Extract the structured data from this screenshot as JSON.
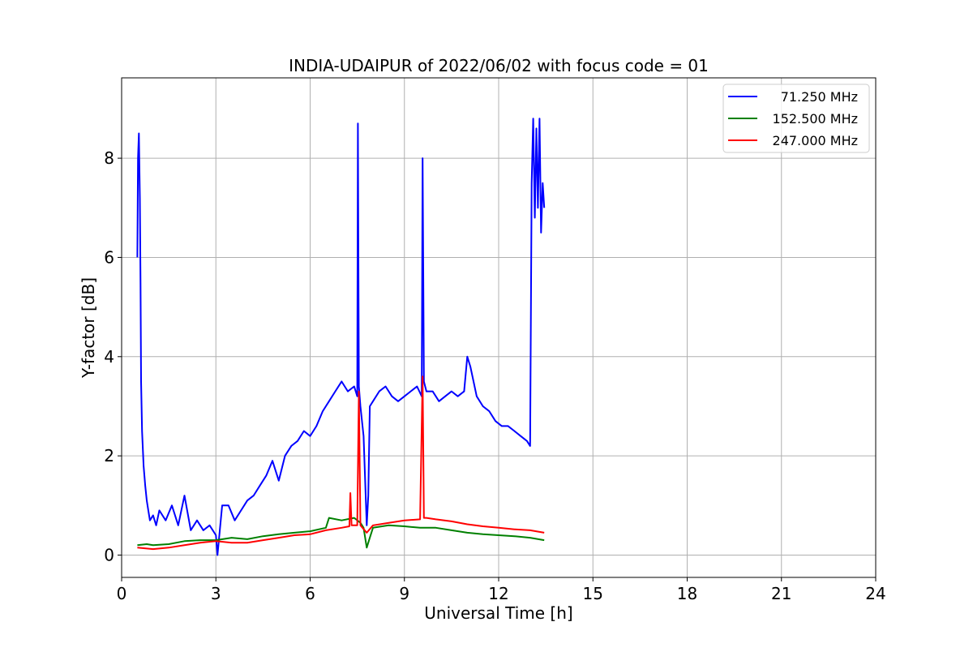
{
  "chart_data": {
    "type": "line",
    "title": "INDIA-UDAIPUR of 2022/06/02 with focus code = 01",
    "xlabel": "Universal Time [h]",
    "ylabel": "Y-factor [dB]",
    "xlim": [
      0,
      24
    ],
    "ylim": [
      -0.45,
      9.62
    ],
    "xticks": [
      0,
      3,
      6,
      9,
      12,
      15,
      18,
      21,
      24
    ],
    "xtick_labels": [
      "0",
      "3",
      "6",
      "9",
      "12",
      "15",
      "18",
      "21",
      "24"
    ],
    "yticks": [
      0,
      2,
      4,
      6,
      8
    ],
    "ytick_labels": [
      "0",
      "2",
      "4",
      "6",
      "8"
    ],
    "grid": true,
    "legend_position": "top-right",
    "series": [
      {
        "name": "71.250 MHz",
        "legend_label": "71.250 MHz",
        "color": "#0000ff",
        "x": [
          0.5,
          0.52,
          0.55,
          0.58,
          0.6,
          0.62,
          0.65,
          0.7,
          0.75,
          0.8,
          0.85,
          0.9,
          1.0,
          1.1,
          1.2,
          1.4,
          1.6,
          1.8,
          2.0,
          2.2,
          2.4,
          2.6,
          2.8,
          3.0,
          3.05,
          3.2,
          3.4,
          3.6,
          3.8,
          4.0,
          4.2,
          4.4,
          4.6,
          4.8,
          5.0,
          5.2,
          5.4,
          5.6,
          5.8,
          6.0,
          6.2,
          6.4,
          6.6,
          6.8,
          7.0,
          7.2,
          7.4,
          7.5,
          7.52,
          7.55,
          7.6,
          7.7,
          7.8,
          7.85,
          7.9,
          8.0,
          8.2,
          8.4,
          8.6,
          8.8,
          9.0,
          9.2,
          9.4,
          9.55,
          9.58,
          9.62,
          9.7,
          9.9,
          10.1,
          10.3,
          10.5,
          10.7,
          10.9,
          11.0,
          11.1,
          11.3,
          11.5,
          11.7,
          11.9,
          12.1,
          12.3,
          12.5,
          12.7,
          12.9,
          13.0,
          13.05,
          13.1,
          13.15,
          13.2,
          13.25,
          13.3,
          13.35,
          13.4,
          13.45
        ],
        "y": [
          6.0,
          8.0,
          8.5,
          7.2,
          5.5,
          3.5,
          2.5,
          1.8,
          1.4,
          1.1,
          0.9,
          0.7,
          0.8,
          0.6,
          0.9,
          0.7,
          1.0,
          0.6,
          1.2,
          0.5,
          0.7,
          0.5,
          0.6,
          0.4,
          0.0,
          1.0,
          1.0,
          0.7,
          0.9,
          1.1,
          1.2,
          1.4,
          1.6,
          1.9,
          1.5,
          2.0,
          2.2,
          2.3,
          2.5,
          2.4,
          2.6,
          2.9,
          3.1,
          3.3,
          3.5,
          3.3,
          3.4,
          3.2,
          8.7,
          3.4,
          3.0,
          2.4,
          0.6,
          1.2,
          3.0,
          3.1,
          3.3,
          3.4,
          3.2,
          3.1,
          3.2,
          3.3,
          3.4,
          3.2,
          8.0,
          3.5,
          3.3,
          3.3,
          3.1,
          3.2,
          3.3,
          3.2,
          3.3,
          4.0,
          3.8,
          3.2,
          3.0,
          2.9,
          2.7,
          2.6,
          2.6,
          2.5,
          2.4,
          2.3,
          2.2,
          7.5,
          8.8,
          6.8,
          8.6,
          7.0,
          8.8,
          6.5,
          7.5,
          7.0
        ]
      },
      {
        "name": "152.500 MHz",
        "legend_label": "152.500 MHz",
        "color": "#008000",
        "x": [
          0.5,
          0.8,
          1.0,
          1.5,
          2.0,
          2.5,
          3.0,
          3.5,
          4.0,
          4.5,
          5.0,
          5.5,
          6.0,
          6.5,
          6.6,
          7.0,
          7.4,
          7.6,
          7.7,
          7.8,
          7.9,
          8.0,
          8.5,
          9.0,
          9.5,
          10.0,
          10.5,
          11.0,
          11.5,
          12.0,
          12.5,
          13.0,
          13.45
        ],
        "y": [
          0.2,
          0.22,
          0.2,
          0.22,
          0.28,
          0.3,
          0.3,
          0.35,
          0.32,
          0.38,
          0.42,
          0.45,
          0.48,
          0.55,
          0.75,
          0.7,
          0.75,
          0.65,
          0.55,
          0.15,
          0.35,
          0.55,
          0.6,
          0.58,
          0.55,
          0.55,
          0.5,
          0.45,
          0.42,
          0.4,
          0.38,
          0.35,
          0.3
        ]
      },
      {
        "name": "247.000 MHz",
        "legend_label": "247.000 MHz",
        "color": "#ff0000",
        "x": [
          0.5,
          1.0,
          1.5,
          2.0,
          2.5,
          3.0,
          3.5,
          4.0,
          4.5,
          5.0,
          5.5,
          6.0,
          6.5,
          7.0,
          7.25,
          7.28,
          7.32,
          7.5,
          7.55,
          7.6,
          7.8,
          8.0,
          8.5,
          9.0,
          9.5,
          9.58,
          9.62,
          9.7,
          10.0,
          10.5,
          11.0,
          11.5,
          12.0,
          12.5,
          13.0,
          13.45
        ],
        "y": [
          0.15,
          0.12,
          0.15,
          0.2,
          0.25,
          0.28,
          0.25,
          0.25,
          0.3,
          0.35,
          0.4,
          0.42,
          0.5,
          0.55,
          0.58,
          1.25,
          0.6,
          0.6,
          3.3,
          0.6,
          0.45,
          0.6,
          0.65,
          0.7,
          0.72,
          3.6,
          0.75,
          0.75,
          0.72,
          0.68,
          0.62,
          0.58,
          0.55,
          0.52,
          0.5,
          0.45
        ]
      }
    ]
  }
}
